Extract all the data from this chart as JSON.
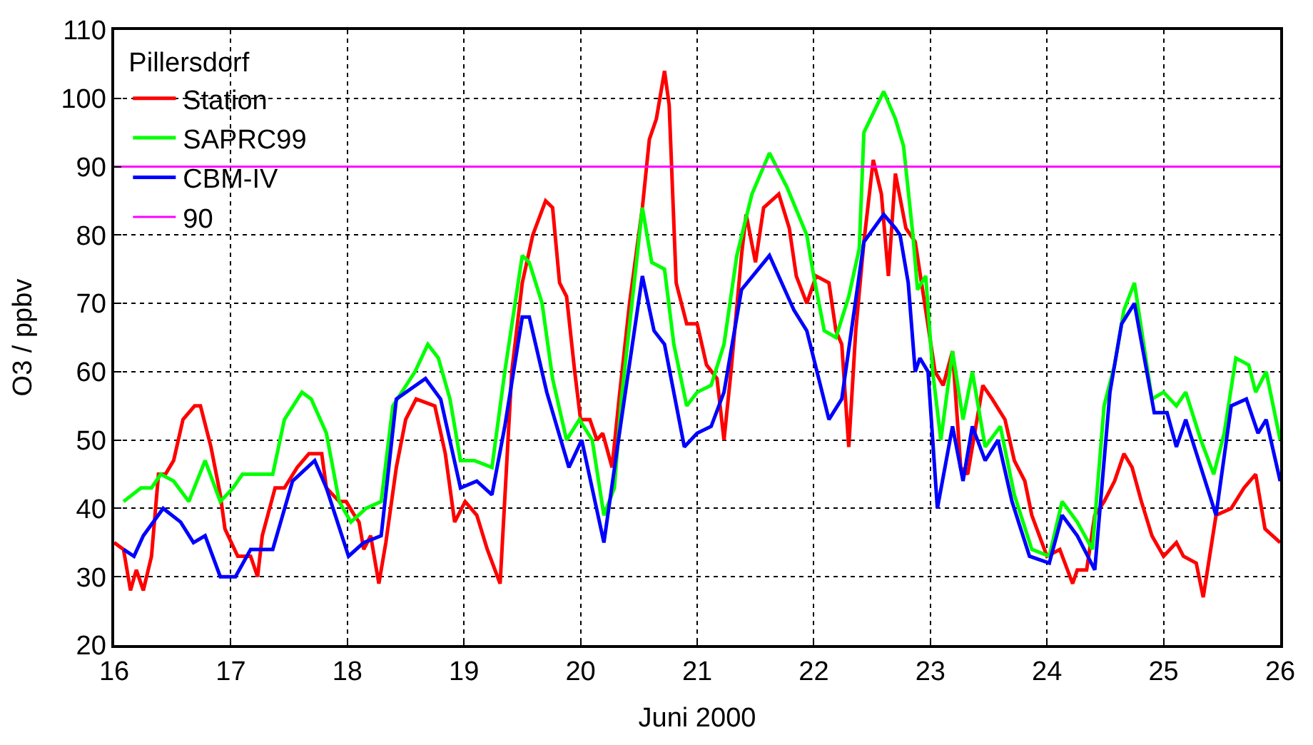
{
  "chart_data": {
    "type": "line",
    "xlabel": "Juni 2000",
    "ylabel": "O3 / ppbv",
    "legend_title": "Pillersdorf",
    "legend": "top left",
    "grid": true,
    "line_style": "solid",
    "marker": "none",
    "xlim": [
      16,
      26
    ],
    "xticks": [
      16,
      17,
      18,
      19,
      20,
      21,
      22,
      23,
      24,
      25,
      26
    ],
    "ylim": [
      20,
      110
    ],
    "yticks": [
      20,
      30,
      40,
      50,
      60,
      70,
      80,
      90,
      100,
      110
    ],
    "ref_lines": [
      {
        "axis": "y",
        "value": 90,
        "label": "90",
        "color": "#ff00ff"
      }
    ],
    "series": [
      {
        "name": "Station",
        "color": "#ff0000",
        "x": [
          16.0,
          16.08,
          16.14,
          16.19,
          16.25,
          16.32,
          16.38,
          16.44,
          16.51,
          16.59,
          16.69,
          16.74,
          16.83,
          16.91,
          16.95,
          17.06,
          17.17,
          17.23,
          17.27,
          17.38,
          17.46,
          17.57,
          17.67,
          17.78,
          17.82,
          17.93,
          17.99,
          18.06,
          18.1,
          18.14,
          18.2,
          18.27,
          18.33,
          18.42,
          18.5,
          18.59,
          18.75,
          18.84,
          18.92,
          19.01,
          19.11,
          19.2,
          19.31,
          19.41,
          19.5,
          19.59,
          19.7,
          19.76,
          19.82,
          19.88,
          19.95,
          20.0,
          20.08,
          20.14,
          20.19,
          20.27,
          20.33,
          20.42,
          20.53,
          20.59,
          20.65,
          20.72,
          20.76,
          20.82,
          20.91,
          21.0,
          21.08,
          21.17,
          21.23,
          21.29,
          21.38,
          21.42,
          21.5,
          21.57,
          21.7,
          21.79,
          21.85,
          21.94,
          22.02,
          22.13,
          22.19,
          22.24,
          22.3,
          22.36,
          22.43,
          22.51,
          22.58,
          22.64,
          22.7,
          22.79,
          22.87,
          22.96,
          23.04,
          23.11,
          23.19,
          23.26,
          23.32,
          23.45,
          23.53,
          23.64,
          23.72,
          23.81,
          23.87,
          24.0,
          24.11,
          24.22,
          24.26,
          24.34,
          24.41,
          24.49,
          24.58,
          24.66,
          24.73,
          24.81,
          24.9,
          25.0,
          25.11,
          25.17,
          25.28,
          25.34,
          25.45,
          25.58,
          25.69,
          25.79,
          25.87,
          26.0
        ],
        "values": [
          35,
          34,
          28,
          31,
          28,
          33,
          45,
          45,
          47,
          53,
          55,
          55,
          49,
          42,
          37,
          33,
          33,
          30,
          36,
          43,
          43,
          46,
          48,
          48,
          43,
          41,
          41,
          39,
          38,
          34,
          36,
          29,
          35,
          46,
          53,
          56,
          55,
          48,
          38,
          41,
          39,
          34,
          29,
          60,
          73,
          80,
          85,
          84,
          73,
          71,
          60,
          53,
          53,
          50,
          51,
          46,
          56,
          70,
          84,
          94,
          97,
          104,
          99,
          73,
          67,
          67,
          61,
          59,
          50,
          60,
          77,
          83,
          76,
          84,
          86,
          81,
          74,
          70,
          74,
          73,
          66,
          64,
          49,
          66,
          79,
          91,
          86,
          74,
          89,
          81,
          79,
          69,
          60,
          58,
          63,
          46,
          45,
          58,
          56,
          53,
          47,
          44,
          39,
          33,
          34,
          29,
          31,
          31,
          39,
          41,
          44,
          48,
          46,
          41,
          36,
          33,
          35,
          33,
          32,
          27,
          39,
          40,
          43,
          45,
          37,
          35
        ]
      },
      {
        "name": "SAPRC99",
        "color": "#00ff00",
        "x": [
          16.08,
          16.23,
          16.32,
          16.4,
          16.51,
          16.64,
          16.78,
          16.91,
          17.02,
          17.1,
          17.23,
          17.36,
          17.46,
          17.61,
          17.69,
          17.82,
          17.93,
          18.03,
          18.16,
          18.29,
          18.39,
          18.58,
          18.69,
          18.78,
          18.88,
          18.97,
          19.09,
          19.24,
          19.35,
          19.5,
          19.56,
          19.67,
          19.76,
          19.88,
          19.99,
          20.1,
          20.2,
          20.29,
          20.35,
          20.46,
          20.53,
          20.61,
          20.72,
          20.8,
          20.91,
          21.0,
          21.12,
          21.23,
          21.34,
          21.47,
          21.62,
          21.77,
          21.94,
          22.0,
          22.09,
          22.19,
          22.3,
          22.39,
          22.43,
          22.6,
          22.7,
          22.77,
          22.85,
          22.89,
          22.96,
          23.02,
          23.09,
          23.19,
          23.28,
          23.36,
          23.47,
          23.6,
          23.72,
          23.87,
          24.02,
          24.13,
          24.26,
          24.39,
          24.49,
          24.58,
          24.66,
          24.75,
          24.9,
          25.0,
          25.11,
          25.19,
          25.32,
          25.43,
          25.52,
          25.62,
          25.73,
          25.79,
          25.88,
          26.0
        ],
        "values": [
          41,
          43,
          43,
          45,
          44,
          41,
          47,
          41,
          43,
          45,
          45,
          45,
          53,
          57,
          56,
          51,
          41,
          38,
          40,
          41,
          55,
          60,
          64,
          62,
          56,
          47,
          47,
          46,
          60,
          77,
          76,
          70,
          59,
          50,
          53,
          50,
          39,
          43,
          56,
          73,
          84,
          76,
          75,
          64,
          55,
          57,
          58,
          64,
          77,
          86,
          92,
          87,
          80,
          74,
          66,
          65,
          71,
          78,
          95,
          101,
          97,
          93,
          80,
          72,
          74,
          60,
          50,
          63,
          53,
          60,
          49,
          52,
          42,
          34,
          33,
          41,
          38,
          34,
          55,
          61,
          69,
          73,
          56,
          57,
          55,
          57,
          50,
          45,
          51,
          62,
          61,
          57,
          60,
          50
        ]
      },
      {
        "name": "CBM-IV",
        "color": "#0000ff",
        "x": [
          16.08,
          16.17,
          16.25,
          16.42,
          16.57,
          16.68,
          16.78,
          16.91,
          17.04,
          17.17,
          17.36,
          17.53,
          17.72,
          17.82,
          18.01,
          18.14,
          18.29,
          18.42,
          18.67,
          18.8,
          18.97,
          19.11,
          19.24,
          19.35,
          19.5,
          19.56,
          19.71,
          19.9,
          20.01,
          20.2,
          20.35,
          20.53,
          20.63,
          20.72,
          20.89,
          21.0,
          21.12,
          21.23,
          21.38,
          21.62,
          21.83,
          21.94,
          22.13,
          22.24,
          22.43,
          22.6,
          22.7,
          22.74,
          22.81,
          22.87,
          22.91,
          22.98,
          23.06,
          23.19,
          23.28,
          23.36,
          23.47,
          23.58,
          23.7,
          23.85,
          24.02,
          24.13,
          24.26,
          24.41,
          24.54,
          24.64,
          24.75,
          24.92,
          25.03,
          25.11,
          25.19,
          25.32,
          25.45,
          25.58,
          25.71,
          25.81,
          25.88,
          26.0
        ],
        "values": [
          34,
          33,
          36,
          40,
          38,
          35,
          36,
          30,
          30,
          34,
          34,
          44,
          47,
          43,
          33,
          35,
          36,
          56,
          59,
          56,
          43,
          44,
          42,
          52,
          68,
          68,
          57,
          46,
          50,
          35,
          53,
          74,
          66,
          64,
          49,
          51,
          52,
          57,
          72,
          77,
          69,
          66,
          53,
          56,
          79,
          83,
          81,
          80,
          73,
          60,
          62,
          60,
          40,
          52,
          44,
          52,
          47,
          50,
          41,
          33,
          32,
          39,
          36,
          31,
          57,
          67,
          70,
          54,
          54,
          49,
          53,
          46,
          39,
          55,
          56,
          51,
          53,
          44
        ]
      }
    ]
  }
}
